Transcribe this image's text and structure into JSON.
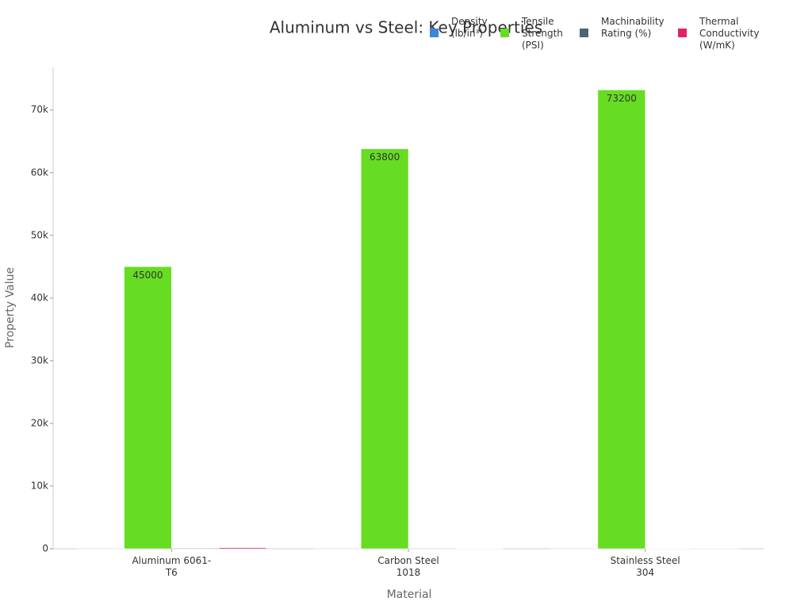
{
  "chart_data": {
    "type": "bar",
    "title": "Aluminum vs Steel: Key Properties",
    "x_label": "Material",
    "y_label": "Property Value",
    "categories": [
      "Aluminum 6061-T6",
      "Carbon Steel 1018",
      "Stainless Steel 304"
    ],
    "series": [
      {
        "name": "Density (lb/in³)",
        "color": "#3a86d8",
        "values": [
          0.098,
          0.284,
          0.289
        ]
      },
      {
        "name": "Tensile Strength (PSI)",
        "color": "#66dd22",
        "values": [
          45000,
          63800,
          73200
        ],
        "data_labels": true
      },
      {
        "name": "Machinability Rating (%)",
        "color": "#4a6572",
        "values": [
          90,
          78,
          45
        ]
      },
      {
        "name": "Thermal Conductivity (W/mK)",
        "color": "#e0245e",
        "values": [
          167,
          51.9,
          16.2
        ]
      }
    ],
    "ylim": [
      0,
      76800
    ],
    "yticks": [
      0,
      {
        "value": 10000,
        "label": "10k"
      },
      {
        "value": 20000,
        "label": "20k"
      },
      {
        "value": 30000,
        "label": "30k"
      },
      {
        "value": 40000,
        "label": "40k"
      },
      {
        "value": 50000,
        "label": "50k"
      },
      {
        "value": 60000,
        "label": "60k"
      },
      {
        "value": 70000,
        "label": "70k"
      }
    ],
    "grid": false,
    "legend": "top-right"
  }
}
